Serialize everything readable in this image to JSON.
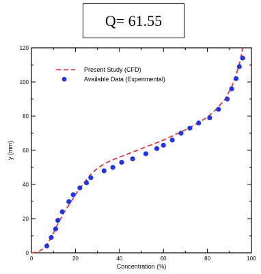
{
  "header": {
    "q_text": "Q= 61.55"
  },
  "chart_data": {
    "type": "line",
    "xlabel": "Concentration (%)",
    "ylabel": "y (mm)",
    "xlim": [
      0,
      100
    ],
    "ylim": [
      0,
      120
    ],
    "xticks": [
      "0",
      "20",
      "40",
      "60",
      "80",
      "100"
    ],
    "yticks": [
      "0",
      "20",
      "40",
      "60",
      "80",
      "100",
      "120"
    ],
    "legend_position": "top-left",
    "series": [
      {
        "name": "Present Study (CFD)",
        "style": "dashed-line",
        "color": "#e8202a",
        "x": [
          0,
          3,
          6,
          9,
          12,
          15,
          18,
          21,
          24,
          27,
          30,
          33,
          36,
          40,
          45,
          50,
          55,
          60,
          65,
          70,
          75,
          80,
          84,
          88,
          91,
          93,
          95,
          96
        ],
        "y": [
          0,
          0.5,
          3,
          9,
          17,
          24,
          30,
          36,
          41,
          46,
          49.5,
          52,
          54,
          56,
          58.5,
          61,
          63.5,
          66,
          69,
          72,
          75.5,
          79.5,
          84,
          90,
          97,
          104,
          113,
          120
        ]
      },
      {
        "name": "Available Data (Experimental)",
        "style": "markers",
        "color": "#2233ee",
        "x": [
          7,
          9,
          11,
          12,
          14,
          17,
          19,
          22,
          25,
          27,
          33,
          37,
          41,
          46,
          52,
          57,
          60,
          64,
          68,
          72,
          76,
          81,
          85,
          89,
          91,
          93,
          94.5,
          96
        ],
        "y": [
          4,
          9,
          14,
          19,
          24,
          30,
          34,
          38,
          41,
          44,
          48,
          50,
          53,
          55,
          58,
          61,
          63,
          66,
          70,
          73,
          76,
          79,
          84,
          90,
          96,
          102,
          109,
          114
        ]
      }
    ]
  }
}
